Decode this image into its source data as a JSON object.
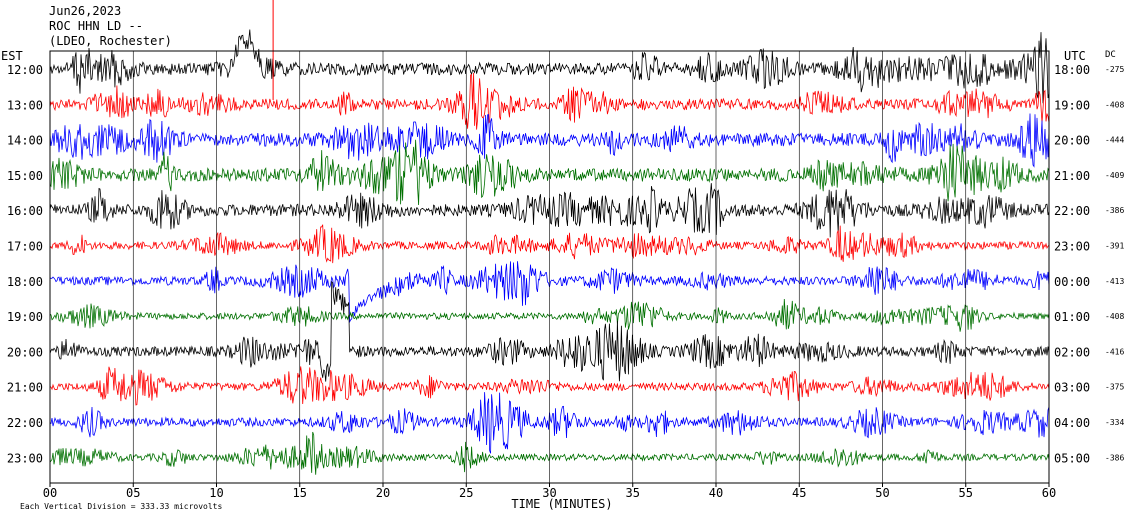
{
  "header": {
    "date": "Jun26,2023",
    "station": "ROC HHN LD --",
    "network": "(LDEO, Rochester)"
  },
  "labels": {
    "left_tz": "EST",
    "right_tz": "UTC",
    "dc": "DC"
  },
  "footer": {
    "xlabel": "TIME (MINUTES)",
    "scale_note": "Each Vertical Division =  333.33 microvolts"
  },
  "colors": [
    "#000000",
    "#ff0000",
    "#0000ff",
    "#007000"
  ],
  "chart_data": {
    "type": "line",
    "title": "ROC HHN LD --",
    "xlabel": "TIME (MINUTES)",
    "xlim": [
      0,
      60
    ],
    "x_ticks": [
      0,
      5,
      10,
      15,
      20,
      25,
      30,
      35,
      40,
      45,
      50,
      55,
      60
    ],
    "x_tick_labels": [
      "00",
      "05",
      "10",
      "15",
      "20",
      "25",
      "30",
      "35",
      "40",
      "45",
      "50",
      "55",
      "60"
    ],
    "rows": [
      {
        "est": "12:00",
        "utc": "18:00",
        "dc": "-275"
      },
      {
        "est": "13:00",
        "utc": "19:00",
        "dc": "-408"
      },
      {
        "est": "14:00",
        "utc": "20:00",
        "dc": "-444"
      },
      {
        "est": "15:00",
        "utc": "21:00",
        "dc": "-409"
      },
      {
        "est": "16:00",
        "utc": "22:00",
        "dc": "-386"
      },
      {
        "est": "17:00",
        "utc": "23:00",
        "dc": "-391"
      },
      {
        "est": "18:00",
        "utc": "00:00",
        "dc": "-413"
      },
      {
        "est": "19:00",
        "utc": "01:00",
        "dc": "-408"
      },
      {
        "est": "20:00",
        "utc": "02:00",
        "dc": "-416"
      },
      {
        "est": "21:00",
        "utc": "03:00",
        "dc": "-375"
      },
      {
        "est": "22:00",
        "utc": "04:00",
        "dc": "-334"
      },
      {
        "est": "23:00",
        "utc": "05:00",
        "dc": "-386"
      }
    ]
  }
}
